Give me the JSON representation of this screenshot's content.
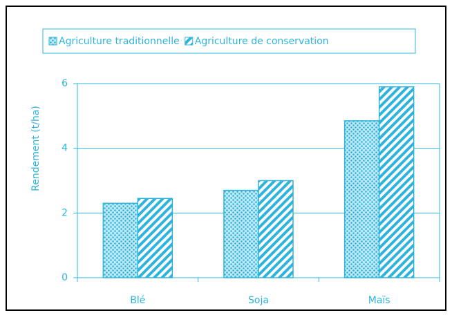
{
  "chart_data": {
    "type": "bar",
    "y_label": "Rendement (t/ha)",
    "categories": [
      "Blé",
      "Soja",
      "Maïs"
    ],
    "series": [
      {
        "name": "Agriculture traditionnelle",
        "color": "#2eb4dc",
        "pattern": "dots",
        "values": [
          2.3,
          2.7,
          4.85
        ]
      },
      {
        "name": "Agriculture de conservation",
        "color": "#2eb4dc",
        "pattern": "stripes",
        "values": [
          2.45,
          3.0,
          5.9
        ]
      }
    ],
    "ylim": [
      0,
      6
    ],
    "yticks": [
      0,
      2,
      4,
      6
    ],
    "grid": true,
    "legend": "top"
  }
}
